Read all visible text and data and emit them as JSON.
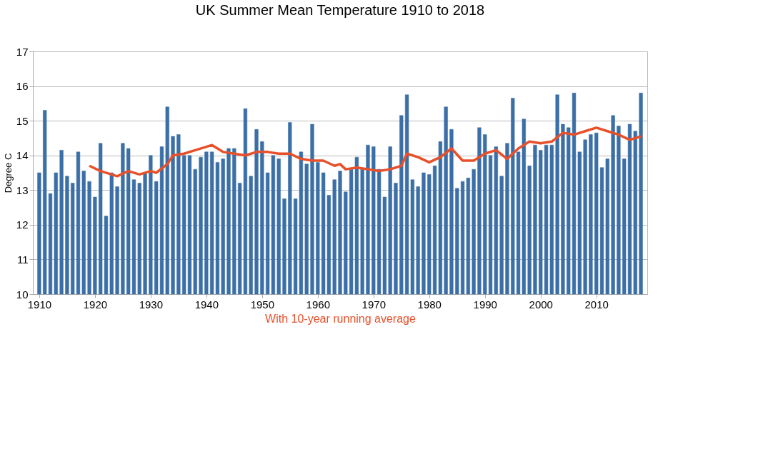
{
  "chart_data": {
    "type": "bar",
    "title": "UK Summer Mean Temperature 1910 to 2018",
    "xlabel": "With 10-year running average",
    "ylabel": "Degree C",
    "x": [
      1910,
      1911,
      1912,
      1913,
      1914,
      1915,
      1916,
      1917,
      1918,
      1919,
      1920,
      1921,
      1922,
      1923,
      1924,
      1925,
      1926,
      1927,
      1928,
      1929,
      1930,
      1931,
      1932,
      1933,
      1934,
      1935,
      1936,
      1937,
      1938,
      1939,
      1940,
      1941,
      1942,
      1943,
      1944,
      1945,
      1946,
      1947,
      1948,
      1949,
      1950,
      1951,
      1952,
      1953,
      1954,
      1955,
      1956,
      1957,
      1958,
      1959,
      1960,
      1961,
      1962,
      1963,
      1964,
      1965,
      1966,
      1967,
      1968,
      1969,
      1970,
      1971,
      1972,
      1973,
      1974,
      1975,
      1976,
      1977,
      1978,
      1979,
      1980,
      1981,
      1982,
      1983,
      1984,
      1985,
      1986,
      1987,
      1988,
      1989,
      1990,
      1991,
      1992,
      1993,
      1994,
      1995,
      1996,
      1997,
      1998,
      1999,
      2000,
      2001,
      2002,
      2003,
      2004,
      2005,
      2006,
      2007,
      2008,
      2009,
      2010,
      2011,
      2012,
      2013,
      2014,
      2015,
      2016,
      2017,
      2018
    ],
    "series": [
      {
        "color": "#3b6fa6",
        "values": [
          13.5,
          15.3,
          12.9,
          13.5,
          14.15,
          13.4,
          13.2,
          14.1,
          13.55,
          13.25,
          12.8,
          14.35,
          12.25,
          13.5,
          13.1,
          14.35,
          14.2,
          13.3,
          13.2,
          13.5,
          14.0,
          13.25,
          14.25,
          15.4,
          14.55,
          14.6,
          14.0,
          14.0,
          13.6,
          13.95,
          14.1,
          14.1,
          13.8,
          13.9,
          14.2,
          14.2,
          13.2,
          15.35,
          13.4,
          14.75,
          14.4,
          13.5,
          14.0,
          13.9,
          12.75,
          14.95,
          12.75,
          14.1,
          13.75,
          14.9,
          13.8,
          13.5,
          12.85,
          13.3,
          13.55,
          12.95,
          13.6,
          13.95,
          13.6,
          14.3,
          14.25,
          13.6,
          12.8,
          14.25,
          13.2,
          15.15,
          15.75,
          13.3,
          13.1,
          13.5,
          13.45,
          13.7,
          14.4,
          15.4,
          14.75,
          13.05,
          13.25,
          13.35,
          13.6,
          14.8,
          14.6,
          14.0,
          14.25,
          13.4,
          14.35,
          15.65,
          14.1,
          15.05,
          13.7,
          14.3,
          14.15,
          14.3,
          14.3,
          15.75,
          14.9,
          14.8,
          15.8,
          14.1,
          14.45,
          14.6,
          14.65,
          13.65,
          13.9,
          15.15,
          14.85,
          13.9,
          14.9,
          14.7,
          15.8
        ]
      },
      {
        "type": "line",
        "color": "#e8502a",
        "x": [
          1919,
          1921,
          1923,
          1924,
          1926,
          1928,
          1930,
          1931,
          1933,
          1934,
          1936,
          1938,
          1940,
          1941,
          1943,
          1945,
          1947,
          1949,
          1951,
          1953,
          1955,
          1957,
          1959,
          1961,
          1963,
          1964,
          1965,
          1967,
          1969,
          1971,
          1973,
          1975,
          1976,
          1978,
          1980,
          1982,
          1984,
          1986,
          1988,
          1990,
          1992,
          1994,
          1996,
          1998,
          2000,
          2002,
          2004,
          2006,
          2008,
          2010,
          2012,
          2014,
          2016,
          2018
        ],
        "values": [
          13.7,
          13.55,
          13.45,
          13.4,
          13.55,
          13.45,
          13.55,
          13.5,
          13.75,
          14.0,
          14.05,
          14.15,
          14.25,
          14.3,
          14.1,
          14.05,
          14.0,
          14.1,
          14.1,
          14.05,
          14.05,
          13.9,
          13.85,
          13.85,
          13.7,
          13.75,
          13.6,
          13.65,
          13.6,
          13.55,
          13.6,
          13.7,
          14.05,
          13.95,
          13.8,
          13.95,
          14.2,
          13.85,
          13.85,
          14.05,
          14.15,
          13.9,
          14.2,
          14.4,
          14.35,
          14.4,
          14.65,
          14.6,
          14.7,
          14.8,
          14.7,
          14.6,
          14.45,
          14.55
        ]
      }
    ],
    "xlim": [
      1909.5,
      2018.5
    ],
    "xticks": [
      1910,
      1920,
      1930,
      1940,
      1950,
      1960,
      1970,
      1980,
      1990,
      2000,
      2010
    ],
    "ylim": [
      10,
      17
    ],
    "yticks": [
      10,
      11,
      12,
      13,
      14,
      15,
      16,
      17
    ],
    "grid": "y"
  }
}
